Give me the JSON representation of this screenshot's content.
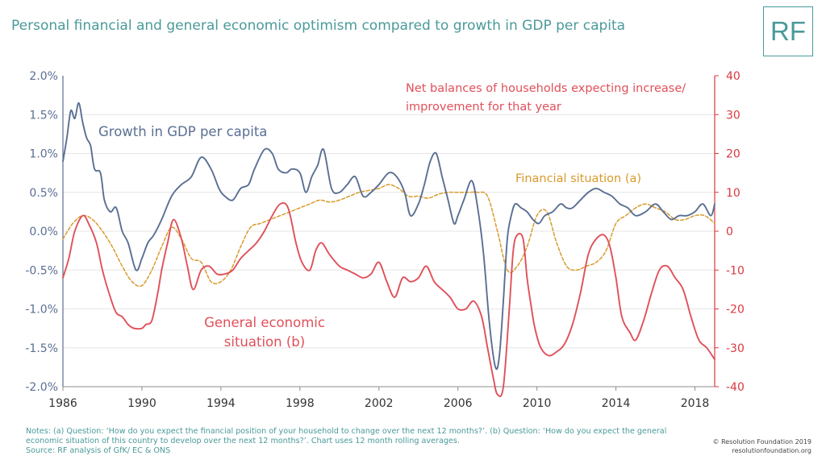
{
  "title": "Personal financial and general economic optimism compared to growth in GDP per capita",
  "logo_text": "RF",
  "notes": [
    "Notes: (a) Question: ‘How do you expect the financial position of your household to change over the next 12 months?’. (b) Question: ‘How do you expect the general",
    "economic situation of this country to develop over the next 12 months?’. Chart uses 12 month rolling averages.",
    "Source: RF analysis of GfK/ EC & ONS"
  ],
  "copyright": [
    "© Resolution Foundation 2019",
    "resolutionfoundation.org"
  ],
  "colors": {
    "gdp": "#5a6f93",
    "financial": "#d99a2b",
    "general": "#e0505a",
    "brand": "#4a9a99",
    "axis_left": "#5a6f93",
    "axis_right": "#d8393f"
  },
  "chart_data": {
    "type": "line",
    "xlim": [
      1986,
      2019
    ],
    "x_ticks": [
      "1986",
      "1990",
      "1994",
      "1998",
      "2002",
      "2006",
      "2010",
      "2014",
      "2018"
    ],
    "y_left": {
      "range": [
        -2.0,
        2.0
      ],
      "ticks": [
        "2.0%",
        "1.5%",
        "1.0%",
        "0.5%",
        "0.0%",
        "-0.5%",
        "-1.0%",
        "-1.5%",
        "-2.0%"
      ]
    },
    "y_right": {
      "range": [
        -40,
        40
      ],
      "ticks": [
        "40",
        "30",
        "20",
        "10",
        "0",
        "-10",
        "-20",
        "-30",
        "-40"
      ]
    },
    "annotations": {
      "gdp": "Growth in GDP per capita",
      "net_balances": [
        "Net balances of households expecting increase/",
        "improvement for that year"
      ],
      "financial": "Financial situation (a)",
      "general": [
        "General economic",
        "situation (b)"
      ]
    },
    "series": [
      {
        "name": "Growth in GDP per capita",
        "axis": "left",
        "x": [
          1986.0,
          1986.2,
          1986.4,
          1986.6,
          1986.8,
          1987.0,
          1987.2,
          1987.4,
          1987.6,
          1987.9,
          1988.1,
          1988.4,
          1988.7,
          1989.0,
          1989.3,
          1989.7,
          1990.0,
          1990.3,
          1990.6,
          1991.0,
          1991.5,
          1992.0,
          1992.5,
          1993.0,
          1993.5,
          1993.9,
          1994.2,
          1994.6,
          1995.0,
          1995.4,
          1995.7,
          1996.2,
          1996.6,
          1996.9,
          1997.3,
          1997.6,
          1998.0,
          1998.3,
          1998.6,
          1998.9,
          1999.2,
          1999.6,
          2000.0,
          2000.4,
          2000.8,
          2001.2,
          2001.6,
          2002.0,
          2002.5,
          2002.9,
          2003.3,
          2003.6,
          2004.0,
          2004.3,
          2004.6,
          2004.9,
          2005.2,
          2005.5,
          2005.8,
          2006.0,
          2006.3,
          2006.7,
          2007.0,
          2007.3,
          2007.6,
          2007.9,
          2008.1,
          2008.3,
          2008.5,
          2008.7,
          2008.9,
          2009.2,
          2009.5,
          2009.8,
          2010.1,
          2010.4,
          2010.8,
          2011.2,
          2011.5,
          2011.8,
          2012.2,
          2012.6,
          2013.0,
          2013.4,
          2013.8,
          2014.2,
          2014.6,
          2015.0,
          2015.5,
          2016.0,
          2016.4,
          2016.8,
          2017.2,
          2017.6,
          2018.0,
          2018.4,
          2018.8,
          2019.0
        ],
        "y": [
          0.9,
          1.2,
          1.55,
          1.45,
          1.65,
          1.4,
          1.2,
          1.1,
          0.8,
          0.75,
          0.4,
          0.25,
          0.3,
          0.0,
          -0.15,
          -0.5,
          -0.35,
          -0.15,
          -0.05,
          0.15,
          0.45,
          0.6,
          0.7,
          0.95,
          0.8,
          0.55,
          0.45,
          0.4,
          0.55,
          0.6,
          0.8,
          1.05,
          1.0,
          0.8,
          0.75,
          0.8,
          0.75,
          0.5,
          0.7,
          0.85,
          1.05,
          0.55,
          0.5,
          0.6,
          0.7,
          0.45,
          0.5,
          0.6,
          0.75,
          0.7,
          0.5,
          0.2,
          0.35,
          0.6,
          0.9,
          1.0,
          0.7,
          0.4,
          0.1,
          0.2,
          0.4,
          0.65,
          0.3,
          -0.3,
          -1.2,
          -1.75,
          -1.6,
          -0.9,
          -0.1,
          0.2,
          0.35,
          0.3,
          0.25,
          0.15,
          0.1,
          0.2,
          0.25,
          0.35,
          0.3,
          0.3,
          0.4,
          0.5,
          0.55,
          0.5,
          0.45,
          0.35,
          0.3,
          0.2,
          0.25,
          0.35,
          0.25,
          0.15,
          0.2,
          0.2,
          0.25,
          0.35,
          0.2,
          0.35
        ]
      },
      {
        "name": "Financial situation (a)",
        "axis": "right",
        "x": [
          1986.0,
          1986.5,
          1987.0,
          1987.5,
          1988.0,
          1988.5,
          1989.0,
          1989.5,
          1990.0,
          1990.5,
          1991.0,
          1991.5,
          1992.0,
          1992.5,
          1993.0,
          1993.5,
          1994.0,
          1994.5,
          1995.0,
          1995.5,
          1996.0,
          1996.5,
          1997.0,
          1997.5,
          1998.0,
          1998.5,
          1999.0,
          1999.5,
          2000.0,
          2000.5,
          2001.0,
          2001.5,
          2002.0,
          2002.5,
          2003.0,
          2003.5,
          2004.0,
          2004.5,
          2005.0,
          2005.5,
          2006.0,
          2006.5,
          2007.0,
          2007.5,
          2008.0,
          2008.5,
          2009.0,
          2009.5,
          2010.0,
          2010.5,
          2011.0,
          2011.5,
          2012.0,
          2012.5,
          2013.0,
          2013.5,
          2014.0,
          2014.5,
          2015.0,
          2015.5,
          2016.0,
          2016.5,
          2017.0,
          2017.5,
          2018.0,
          2018.5,
          2019.0
        ],
        "y": [
          -2,
          2,
          4,
          3,
          0,
          -4,
          -9,
          -13,
          -14,
          -10,
          -4,
          1,
          -2,
          -7,
          -8,
          -13,
          -13,
          -10,
          -4,
          1,
          2,
          3,
          4,
          5,
          6,
          7,
          8,
          7.5,
          8,
          9,
          10,
          10.5,
          11,
          12,
          11,
          9,
          9,
          8.5,
          9.5,
          10,
          10,
          10,
          10,
          9,
          0,
          -10,
          -9,
          -4,
          4,
          5,
          -3,
          -9,
          -10,
          -9,
          -8,
          -5,
          2,
          4,
          6,
          7,
          6,
          5,
          3,
          3,
          4,
          4,
          2
        ]
      },
      {
        "name": "General economic situation (b)",
        "axis": "right",
        "x": [
          1986.0,
          1986.3,
          1986.6,
          1987.0,
          1987.3,
          1987.7,
          1988.0,
          1988.4,
          1988.7,
          1989.0,
          1989.3,
          1989.6,
          1990.0,
          1990.2,
          1990.5,
          1990.8,
          1991.0,
          1991.3,
          1991.6,
          1992.0,
          1992.3,
          1992.6,
          1993.0,
          1993.4,
          1993.8,
          1994.2,
          1994.6,
          1995.0,
          1995.4,
          1995.8,
          1996.2,
          1996.6,
          1997.0,
          1997.4,
          1997.8,
          1998.1,
          1998.5,
          1998.8,
          1999.1,
          1999.5,
          2000.0,
          2000.4,
          2000.8,
          2001.2,
          2001.6,
          2002.0,
          2002.4,
          2002.8,
          2003.2,
          2003.6,
          2004.0,
          2004.4,
          2004.8,
          2005.2,
          2005.6,
          2006.0,
          2006.4,
          2006.8,
          2007.2,
          2007.5,
          2007.8,
          2008.0,
          2008.3,
          2008.6,
          2008.8,
          2009.0,
          2009.3,
          2009.5,
          2009.7,
          2009.9,
          2010.2,
          2010.6,
          2011.0,
          2011.4,
          2011.8,
          2012.2,
          2012.6,
          2013.0,
          2013.4,
          2013.7,
          2014.0,
          2014.3,
          2014.7,
          2015.0,
          2015.4,
          2015.8,
          2016.2,
          2016.6,
          2017.0,
          2017.4,
          2017.8,
          2018.2,
          2018.6,
          2019.0
        ],
        "y": [
          -12,
          -7,
          0,
          4,
          2,
          -3,
          -10,
          -17,
          -21,
          -22,
          -24,
          -25,
          -25,
          -24,
          -23,
          -16,
          -10,
          -3,
          3,
          -2,
          -9,
          -15,
          -10,
          -9,
          -11,
          -11,
          -10,
          -7,
          -5,
          -3,
          0,
          4,
          7,
          6,
          -3,
          -8,
          -10,
          -5,
          -3,
          -6,
          -9,
          -10,
          -11,
          -12,
          -11,
          -8,
          -13,
          -17,
          -12,
          -13,
          -12,
          -9,
          -13,
          -15,
          -17,
          -20,
          -20,
          -18,
          -22,
          -30,
          -38,
          -42,
          -40,
          -20,
          -5,
          -1,
          -2,
          -12,
          -19,
          -25,
          -30,
          -32,
          -31,
          -29,
          -24,
          -16,
          -6,
          -2,
          -1,
          -4,
          -12,
          -22,
          -26,
          -28,
          -23,
          -16,
          -10,
          -9,
          -12,
          -15,
          -22,
          -28,
          -30,
          -33
        ]
      }
    ]
  }
}
